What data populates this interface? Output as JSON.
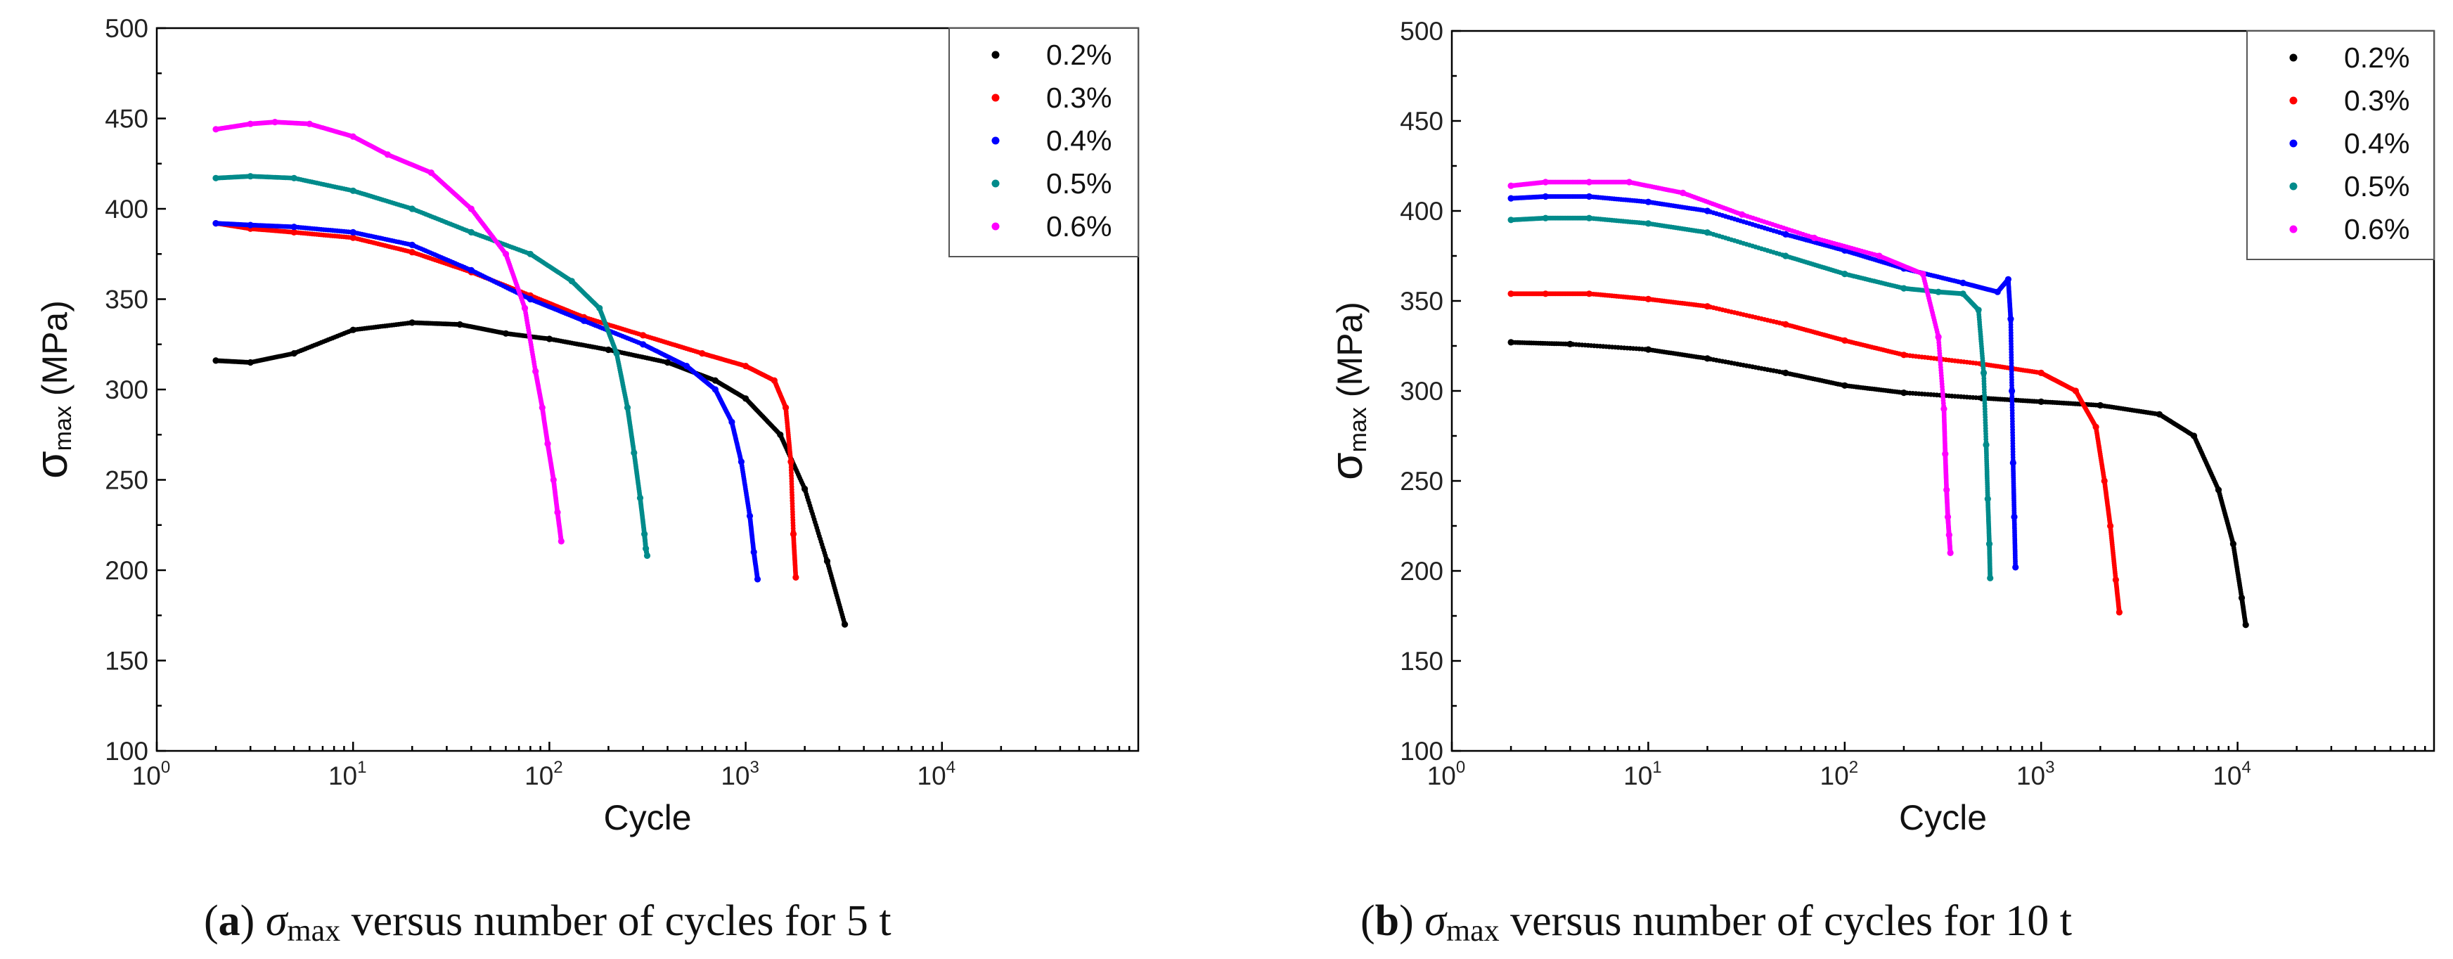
{
  "chart_data": [
    {
      "panel_id": "a",
      "type": "scatter",
      "x_scale": "log",
      "xlabel": "Cycle",
      "ylabel_symbol": "σ",
      "ylabel_subscript": "max",
      "ylabel_unit": " (MPa)",
      "xlim": [
        1,
        100000
      ],
      "ylim": [
        100,
        500
      ],
      "yticks": [
        "100",
        "150",
        "200",
        "250",
        "300",
        "350",
        "400",
        "450",
        "500"
      ],
      "xticks": [
        {
          "base": "10",
          "exp": "0"
        },
        {
          "base": "10",
          "exp": "1"
        },
        {
          "base": "10",
          "exp": "2"
        },
        {
          "base": "10",
          "exp": "3"
        },
        {
          "base": "10",
          "exp": "4"
        }
      ],
      "legend_position": "top-right",
      "caption": {
        "open": "(",
        "letter": "a",
        "close": ") ",
        "sym": "σ",
        "sub": "max",
        "text": " versus number of cycles for 5 t"
      },
      "series": [
        {
          "name": "0.2%",
          "color": "#000000",
          "x": [
            2,
            3,
            5,
            10,
            20,
            35,
            60,
            100,
            200,
            400,
            700,
            1000,
            1500,
            2000,
            2600,
            3200
          ],
          "y": [
            316,
            315,
            320,
            333,
            337,
            336,
            331,
            328,
            322,
            315,
            305,
            295,
            275,
            245,
            205,
            170
          ]
        },
        {
          "name": "0.3%",
          "color": "#ff0000",
          "x": [
            2,
            3,
            5,
            10,
            20,
            40,
            80,
            150,
            300,
            600,
            1000,
            1400,
            1600,
            1700,
            1750,
            1800
          ],
          "y": [
            392,
            389,
            387,
            384,
            376,
            365,
            352,
            340,
            330,
            320,
            313,
            305,
            290,
            260,
            220,
            196
          ]
        },
        {
          "name": "0.4%",
          "color": "#0000ff",
          "x": [
            2,
            3,
            5,
            10,
            20,
            40,
            80,
            150,
            300,
            500,
            700,
            850,
            950,
            1050,
            1100,
            1150
          ],
          "y": [
            392,
            391,
            390,
            387,
            380,
            366,
            350,
            338,
            325,
            313,
            300,
            282,
            260,
            230,
            210,
            195
          ]
        },
        {
          "name": "0.5%",
          "color": "#008b8b",
          "x": [
            2,
            3,
            5,
            10,
            20,
            40,
            80,
            130,
            180,
            220,
            250,
            270,
            290,
            305,
            310,
            315
          ],
          "y": [
            417,
            418,
            417,
            410,
            400,
            387,
            375,
            360,
            345,
            320,
            290,
            265,
            240,
            220,
            212,
            208
          ]
        },
        {
          "name": "0.6%",
          "color": "#ff00ff",
          "x": [
            2,
            3,
            4,
            6,
            10,
            15,
            25,
            40,
            60,
            75,
            85,
            92,
            98,
            105,
            110,
            115
          ],
          "y": [
            444,
            447,
            448,
            447,
            440,
            430,
            420,
            400,
            375,
            345,
            310,
            290,
            270,
            250,
            232,
            216
          ]
        }
      ]
    },
    {
      "panel_id": "b",
      "type": "scatter",
      "x_scale": "log",
      "xlabel": "Cycle",
      "ylabel_symbol": "σ",
      "ylabel_subscript": "max",
      "ylabel_unit": " (MPa)",
      "xlim": [
        1,
        100000
      ],
      "ylim": [
        100,
        500
      ],
      "yticks": [
        "100",
        "150",
        "200",
        "250",
        "300",
        "350",
        "400",
        "450",
        "500"
      ],
      "xticks": [
        {
          "base": "10",
          "exp": "0"
        },
        {
          "base": "10",
          "exp": "1"
        },
        {
          "base": "10",
          "exp": "2"
        },
        {
          "base": "10",
          "exp": "3"
        },
        {
          "base": "10",
          "exp": "4"
        }
      ],
      "legend_position": "top-right",
      "caption": {
        "open": "(",
        "letter": "b",
        "close": ") ",
        "sym": "σ",
        "sub": "max",
        "text": " versus number of cycles for 10 t"
      },
      "series": [
        {
          "name": "0.2%",
          "color": "#000000",
          "x": [
            2,
            4,
            10,
            20,
            50,
            100,
            200,
            500,
            1000,
            2000,
            4000,
            6000,
            8000,
            9500,
            10500,
            11000
          ],
          "y": [
            327,
            326,
            323,
            318,
            310,
            303,
            299,
            296,
            294,
            292,
            287,
            275,
            245,
            215,
            185,
            170
          ]
        },
        {
          "name": "0.3%",
          "color": "#ff0000",
          "x": [
            2,
            3,
            5,
            10,
            20,
            50,
            100,
            200,
            500,
            1000,
            1500,
            1900,
            2100,
            2250,
            2400,
            2500
          ],
          "y": [
            354,
            354,
            354,
            351,
            347,
            337,
            328,
            320,
            315,
            310,
            300,
            280,
            250,
            225,
            195,
            177
          ]
        },
        {
          "name": "0.4%",
          "color": "#0000ff",
          "x": [
            2,
            3,
            5,
            10,
            20,
            50,
            100,
            200,
            400,
            600,
            680,
            700,
            710,
            720,
            730,
            740
          ],
          "y": [
            407,
            408,
            408,
            405,
            400,
            387,
            378,
            368,
            360,
            355,
            362,
            340,
            300,
            260,
            230,
            202
          ]
        },
        {
          "name": "0.5%",
          "color": "#008b8b",
          "x": [
            2,
            3,
            5,
            10,
            20,
            50,
            100,
            200,
            300,
            400,
            480,
            510,
            525,
            535,
            545,
            550
          ],
          "y": [
            395,
            396,
            396,
            393,
            388,
            375,
            365,
            357,
            355,
            354,
            345,
            310,
            270,
            240,
            215,
            196
          ]
        },
        {
          "name": "0.6%",
          "color": "#ff00ff",
          "x": [
            2,
            3,
            5,
            8,
            15,
            30,
            70,
            150,
            250,
            300,
            320,
            325,
            330,
            335,
            340,
            345
          ],
          "y": [
            414,
            416,
            416,
            416,
            410,
            398,
            385,
            375,
            365,
            330,
            290,
            265,
            245,
            230,
            220,
            210
          ]
        }
      ]
    }
  ]
}
